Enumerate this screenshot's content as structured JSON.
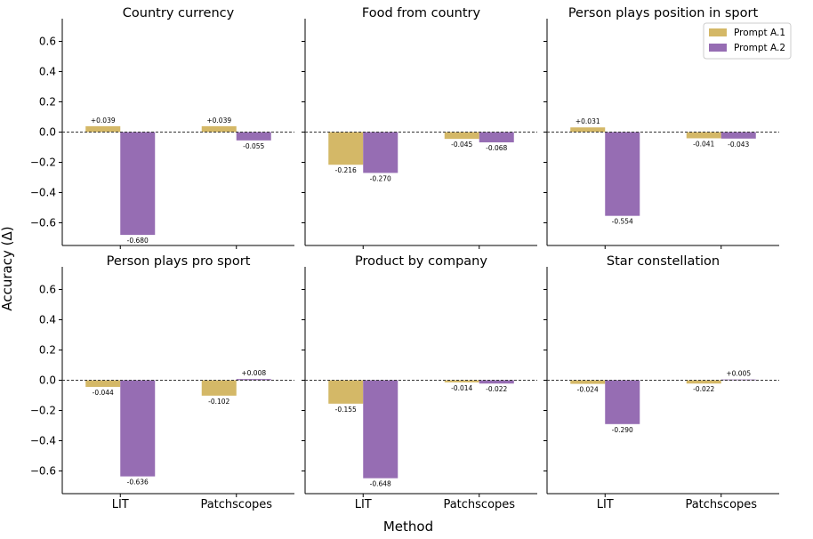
{
  "figure": {
    "ylabel": "Accuracy (Δ)",
    "xlabel": "Method"
  },
  "legend": {
    "position": "top-right",
    "entries": [
      {
        "label": "Prompt A.1",
        "color": "#d4b867"
      },
      {
        "label": "Prompt A.2",
        "color": "#966db3"
      }
    ]
  },
  "chart_data": [
    {
      "type": "bar",
      "title": "Country currency",
      "categories": [
        "LIT",
        "Patchscopes"
      ],
      "series": [
        {
          "name": "Prompt A.1",
          "values": [
            0.039,
            0.039
          ],
          "labels": [
            "+0.039",
            "+0.039"
          ]
        },
        {
          "name": "Prompt A.2",
          "values": [
            -0.68,
            -0.055
          ],
          "labels": [
            "-0.680",
            "-0.055"
          ]
        }
      ],
      "yticks": [
        "0.6",
        "0.4",
        "0.2",
        "0.0",
        "−0.2",
        "−0.4",
        "−0.6"
      ],
      "ylim": [
        -0.75,
        0.75
      ],
      "grid": false
    },
    {
      "type": "bar",
      "title": "Food from country",
      "categories": [
        "LIT",
        "Patchscopes"
      ],
      "series": [
        {
          "name": "Prompt A.1",
          "values": [
            -0.216,
            -0.045
          ],
          "labels": [
            "-0.216",
            "-0.045"
          ]
        },
        {
          "name": "Prompt A.2",
          "values": [
            -0.27,
            -0.068
          ],
          "labels": [
            "-0.270",
            "-0.068"
          ]
        }
      ],
      "ylim": [
        -0.75,
        0.75
      ],
      "grid": false
    },
    {
      "type": "bar",
      "title": "Person plays position in sport",
      "categories": [
        "LIT",
        "Patchscopes"
      ],
      "series": [
        {
          "name": "Prompt A.1",
          "values": [
            0.031,
            -0.041
          ],
          "labels": [
            "+0.031",
            "-0.041"
          ]
        },
        {
          "name": "Prompt A.2",
          "values": [
            -0.554,
            -0.043
          ],
          "labels": [
            "-0.554",
            "-0.043"
          ]
        }
      ],
      "ylim": [
        -0.75,
        0.75
      ],
      "grid": false
    },
    {
      "type": "bar",
      "title": "Person plays pro sport",
      "categories": [
        "LIT",
        "Patchscopes"
      ],
      "series": [
        {
          "name": "Prompt A.1",
          "values": [
            -0.044,
            -0.102
          ],
          "labels": [
            "-0.044",
            "-0.102"
          ]
        },
        {
          "name": "Prompt A.2",
          "values": [
            -0.636,
            0.008
          ],
          "labels": [
            "-0.636",
            "+0.008"
          ]
        }
      ],
      "yticks": [
        "0.6",
        "0.4",
        "0.2",
        "0.0",
        "−0.2",
        "−0.4",
        "−0.6"
      ],
      "xticks": [
        "LIT",
        "Patchscopes"
      ],
      "ylim": [
        -0.75,
        0.75
      ],
      "grid": false
    },
    {
      "type": "bar",
      "title": "Product by company",
      "categories": [
        "LIT",
        "Patchscopes"
      ],
      "series": [
        {
          "name": "Prompt A.1",
          "values": [
            -0.155,
            -0.014
          ],
          "labels": [
            "-0.155",
            "-0.014"
          ]
        },
        {
          "name": "Prompt A.2",
          "values": [
            -0.648,
            -0.022
          ],
          "labels": [
            "-0.648",
            "-0.022"
          ]
        }
      ],
      "xticks": [
        "LIT",
        "Patchscopes"
      ],
      "ylim": [
        -0.75,
        0.75
      ],
      "grid": false
    },
    {
      "type": "bar",
      "title": "Star constellation",
      "categories": [
        "LIT",
        "Patchscopes"
      ],
      "series": [
        {
          "name": "Prompt A.1",
          "values": [
            -0.024,
            -0.022
          ],
          "labels": [
            "-0.024",
            "-0.022"
          ]
        },
        {
          "name": "Prompt A.2",
          "values": [
            -0.29,
            0.005
          ],
          "labels": [
            "-0.290",
            "+0.005"
          ]
        }
      ],
      "xticks": [
        "LIT",
        "Patchscopes"
      ],
      "ylim": [
        -0.75,
        0.75
      ],
      "grid": false
    }
  ]
}
